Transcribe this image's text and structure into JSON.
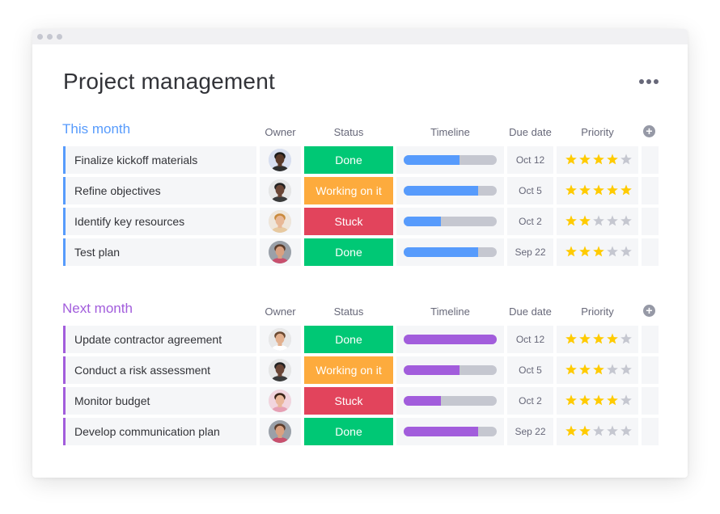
{
  "page_title": "Project management",
  "columns": {
    "owner": "Owner",
    "status": "Status",
    "timeline": "Timeline",
    "due_date": "Due date",
    "priority": "Priority"
  },
  "colors": {
    "done": "#00c875",
    "working": "#fdab3d",
    "stuck": "#e2445c",
    "this_month": "#579bfc",
    "next_month": "#a25ddc",
    "star_on": "#ffcb00",
    "star_off": "#c5c7d0"
  },
  "groups": [
    {
      "title": "This month",
      "color": "#579bfc",
      "items": [
        {
          "name": "Finalize kickoff materials",
          "status": "Done",
          "status_color": "#00c875",
          "timeline_progress": 0.6,
          "due": "Oct 12",
          "priority": 4,
          "avatar": {
            "skin": "#5a3a2a",
            "hair": "#1a1a1a",
            "shirt": "#2e2e2e",
            "bg": "#d8dff0"
          }
        },
        {
          "name": "Refine objectives",
          "status": "Working on it",
          "status_color": "#fdab3d",
          "timeline_progress": 0.8,
          "due": "Oct 5",
          "priority": 5,
          "avatar": {
            "skin": "#6b4636",
            "hair": "#222222",
            "shirt": "#3a3a3a",
            "bg": "#e6e6e6"
          }
        },
        {
          "name": "Identify key resources",
          "status": "Stuck",
          "status_color": "#e2445c",
          "timeline_progress": 0.4,
          "due": "Oct 2",
          "priority": 2,
          "avatar": {
            "skin": "#e8b896",
            "hair": "#c98a3c",
            "shirt": "#e7c9a0",
            "bg": "#efe6da"
          }
        },
        {
          "name": "Test plan",
          "status": "Done",
          "status_color": "#00c875",
          "timeline_progress": 0.8,
          "due": "Sep 22",
          "priority": 3,
          "avatar": {
            "skin": "#d9a080",
            "hair": "#5a3b2a",
            "shirt": "#c8506e",
            "bg": "#9aa0a8"
          }
        }
      ]
    },
    {
      "title": "Next month",
      "color": "#a25ddc",
      "items": [
        {
          "name": "Update contractor agreement",
          "status": "Done",
          "status_color": "#00c875",
          "timeline_progress": 1.0,
          "due": "Oct 12",
          "priority": 4,
          "avatar": {
            "skin": "#e2b08e",
            "hair": "#6b4a32",
            "shirt": "#ffffff",
            "bg": "#e8e8e8"
          }
        },
        {
          "name": "Conduct a risk assessment",
          "status": "Working on it",
          "status_color": "#fdab3d",
          "timeline_progress": 0.6,
          "due": "Oct 5",
          "priority": 3,
          "avatar": {
            "skin": "#6b4636",
            "hair": "#222222",
            "shirt": "#3a3a3a",
            "bg": "#e6e6e6"
          }
        },
        {
          "name": "Monitor budget",
          "status": "Stuck",
          "status_color": "#e2445c",
          "timeline_progress": 0.4,
          "due": "Oct 2",
          "priority": 4,
          "avatar": {
            "skin": "#eab79a",
            "hair": "#3a2418",
            "shirt": "#e6a0b4",
            "bg": "#f2d5de"
          }
        },
        {
          "name": "Develop communication plan",
          "status": "Done",
          "status_color": "#00c875",
          "timeline_progress": 0.8,
          "due": "Sep 22",
          "priority": 2,
          "avatar": {
            "skin": "#d9a080",
            "hair": "#5a3b2a",
            "shirt": "#c8506e",
            "bg": "#9aa0a8"
          }
        }
      ]
    }
  ]
}
